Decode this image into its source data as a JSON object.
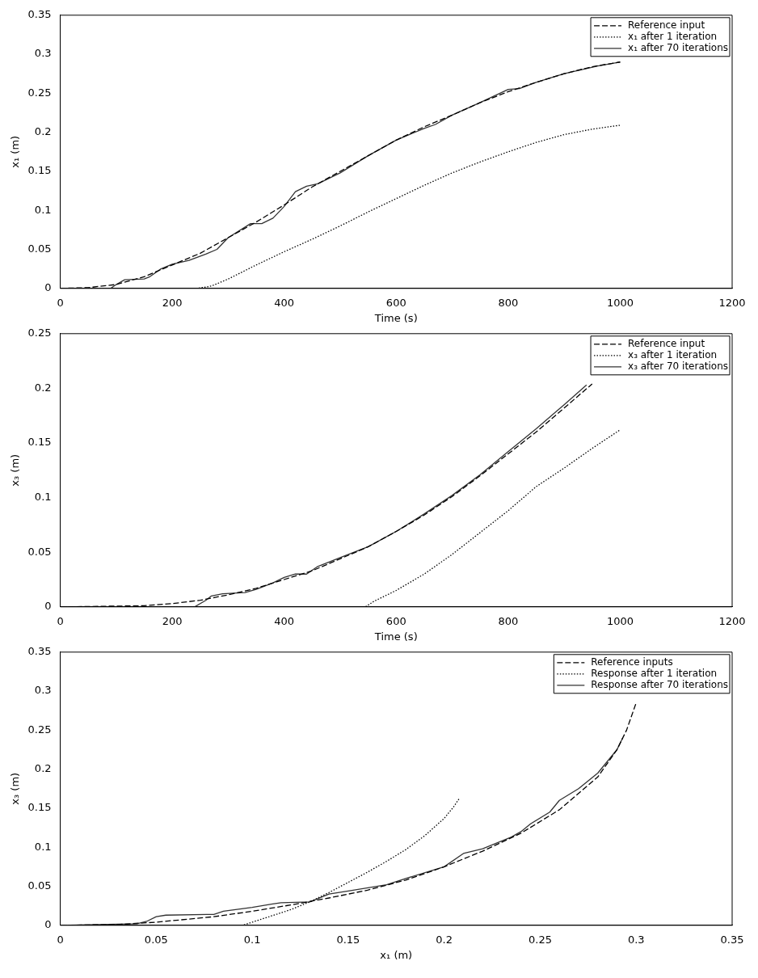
{
  "chart_data": [
    {
      "type": "line",
      "xlabel": "Time (s)",
      "ylabel": "x₁ (m)",
      "xlim": [
        0,
        1200
      ],
      "xticks": [
        0,
        200,
        400,
        600,
        800,
        1000,
        1200
      ],
      "ylim": [
        0,
        0.35
      ],
      "yticks": [
        0,
        0.05,
        0.1,
        0.15,
        0.2,
        0.25,
        0.3,
        0.35
      ],
      "grid": false,
      "legend": "top right",
      "marker": "none",
      "series": [
        {
          "name": "Reference input",
          "color": "#000000",
          "line_style": "dashed",
          "x": [
            0,
            50,
            100,
            150,
            200,
            250,
            300,
            350,
            400,
            450,
            500,
            550,
            600,
            650,
            700,
            750,
            800,
            850,
            900,
            950,
            1000
          ],
          "values": [
            0,
            0.001,
            0.005,
            0.015,
            0.03,
            0.045,
            0.065,
            0.085,
            0.107,
            0.13,
            0.15,
            0.17,
            0.19,
            0.207,
            0.222,
            0.238,
            0.252,
            0.264,
            0.275,
            0.284,
            0.29
          ]
        },
        {
          "name": "x₁ after 1 iteration",
          "color": "#000000",
          "line_style": "dotted",
          "x": [
            0,
            245,
            270,
            300,
            350,
            400,
            450,
            500,
            550,
            600,
            650,
            700,
            750,
            800,
            850,
            900,
            950,
            1000
          ],
          "values": [
            0,
            0,
            0.003,
            0.012,
            0.03,
            0.047,
            0.063,
            0.08,
            0.098,
            0.115,
            0.132,
            0.148,
            0.162,
            0.175,
            0.187,
            0.197,
            0.204,
            0.209
          ]
        },
        {
          "name": "x₁ after 70 iterations",
          "color": "#333333",
          "line_style": "solid",
          "x": [
            0,
            90,
            100,
            115,
            150,
            160,
            180,
            200,
            230,
            260,
            280,
            300,
            340,
            360,
            380,
            400,
            420,
            440,
            460,
            500,
            550,
            600,
            650,
            670,
            700,
            750,
            800,
            820,
            850,
            900,
            960,
            1000
          ],
          "values": [
            0,
            0,
            0.005,
            0.011,
            0.012,
            0.015,
            0.025,
            0.031,
            0.036,
            0.044,
            0.05,
            0.065,
            0.083,
            0.083,
            0.09,
            0.105,
            0.124,
            0.131,
            0.134,
            0.148,
            0.17,
            0.19,
            0.205,
            0.21,
            0.222,
            0.238,
            0.255,
            0.256,
            0.264,
            0.275,
            0.285,
            0.29
          ]
        }
      ]
    },
    {
      "type": "line",
      "xlabel": "Time (s)",
      "ylabel": "x₃ (m)",
      "xlim": [
        0,
        1200
      ],
      "xticks": [
        0,
        200,
        400,
        600,
        800,
        1000,
        1200
      ],
      "ylim": [
        0,
        0.25
      ],
      "yticks": [
        0,
        0.05,
        0.1,
        0.15,
        0.2,
        0.25
      ],
      "grid": false,
      "legend": "top right",
      "marker": "none",
      "series": [
        {
          "name": "Reference input",
          "color": "#000000",
          "line_style": "dashed",
          "x": [
            0,
            150,
            200,
            250,
            300,
            350,
            400,
            450,
            500,
            550,
            600,
            650,
            700,
            750,
            800,
            850,
            900,
            950
          ],
          "values": [
            0,
            0.001,
            0.003,
            0.006,
            0.011,
            0.017,
            0.025,
            0.033,
            0.044,
            0.055,
            0.069,
            0.084,
            0.101,
            0.12,
            0.14,
            0.16,
            0.182,
            0.204
          ]
        },
        {
          "name": "x₃ after 1 iteration",
          "color": "#000000",
          "line_style": "dotted",
          "x": [
            0,
            545,
            560,
            600,
            650,
            700,
            750,
            800,
            850,
            900,
            950,
            1000
          ],
          "values": [
            0,
            0,
            0.005,
            0.015,
            0.03,
            0.048,
            0.068,
            0.088,
            0.11,
            0.127,
            0.145,
            0.162
          ]
        },
        {
          "name": "x₃ after 70 iterations",
          "color": "#333333",
          "line_style": "solid",
          "x": [
            0,
            240,
            260,
            270,
            290,
            330,
            350,
            380,
            400,
            420,
            440,
            460,
            500,
            550,
            600,
            650,
            700,
            750,
            800,
            850,
            900,
            940
          ],
          "values": [
            0,
            0,
            0.006,
            0.01,
            0.012,
            0.013,
            0.016,
            0.022,
            0.027,
            0.03,
            0.03,
            0.037,
            0.045,
            0.055,
            0.069,
            0.085,
            0.102,
            0.121,
            0.142,
            0.163,
            0.185,
            0.203
          ]
        }
      ]
    },
    {
      "type": "line",
      "xlabel": "x₁ (m)",
      "ylabel": "x₃ (m)",
      "xlim": [
        0,
        0.35
      ],
      "xticks": [
        0,
        0.05,
        0.1,
        0.15,
        0.2,
        0.25,
        0.3,
        0.35
      ],
      "ylim": [
        0,
        0.35
      ],
      "yticks": [
        0,
        0.05,
        0.1,
        0.15,
        0.2,
        0.25,
        0.3,
        0.35
      ],
      "grid": false,
      "legend": "top right",
      "marker": "none",
      "series": [
        {
          "name": "Reference inputs",
          "color": "#000000",
          "line_style": "dashed",
          "x": [
            0,
            0.03,
            0.05,
            0.08,
            0.1,
            0.12,
            0.14,
            0.16,
            0.18,
            0.2,
            0.22,
            0.24,
            0.26,
            0.28,
            0.29,
            0.295,
            0.3
          ],
          "values": [
            0,
            0.001,
            0.004,
            0.011,
            0.018,
            0.026,
            0.035,
            0.045,
            0.058,
            0.075,
            0.095,
            0.118,
            0.148,
            0.19,
            0.225,
            0.25,
            0.285
          ]
        },
        {
          "name": "Response after 1 iteration",
          "color": "#000000",
          "line_style": "dotted",
          "x": [
            0,
            0.095,
            0.1,
            0.11,
            0.12,
            0.13,
            0.14,
            0.15,
            0.16,
            0.17,
            0.18,
            0.19,
            0.2,
            0.205,
            0.208
          ],
          "values": [
            0,
            0,
            0.004,
            0.012,
            0.02,
            0.03,
            0.042,
            0.055,
            0.068,
            0.082,
            0.097,
            0.115,
            0.137,
            0.152,
            0.163
          ]
        },
        {
          "name": "Response after 70 iterations",
          "color": "#333333",
          "line_style": "solid",
          "x": [
            0,
            0.04,
            0.045,
            0.05,
            0.055,
            0.08,
            0.085,
            0.1,
            0.11,
            0.115,
            0.13,
            0.14,
            0.15,
            0.17,
            0.18,
            0.2,
            0.21,
            0.22,
            0.235,
            0.24,
            0.245,
            0.255,
            0.26,
            0.27,
            0.28,
            0.285,
            0.29,
            0.293
          ],
          "values": [
            0,
            0.002,
            0.005,
            0.011,
            0.013,
            0.014,
            0.018,
            0.023,
            0.027,
            0.029,
            0.03,
            0.04,
            0.044,
            0.052,
            0.06,
            0.075,
            0.092,
            0.098,
            0.113,
            0.12,
            0.13,
            0.145,
            0.16,
            0.175,
            0.195,
            0.21,
            0.225,
            0.24
          ]
        }
      ]
    }
  ]
}
